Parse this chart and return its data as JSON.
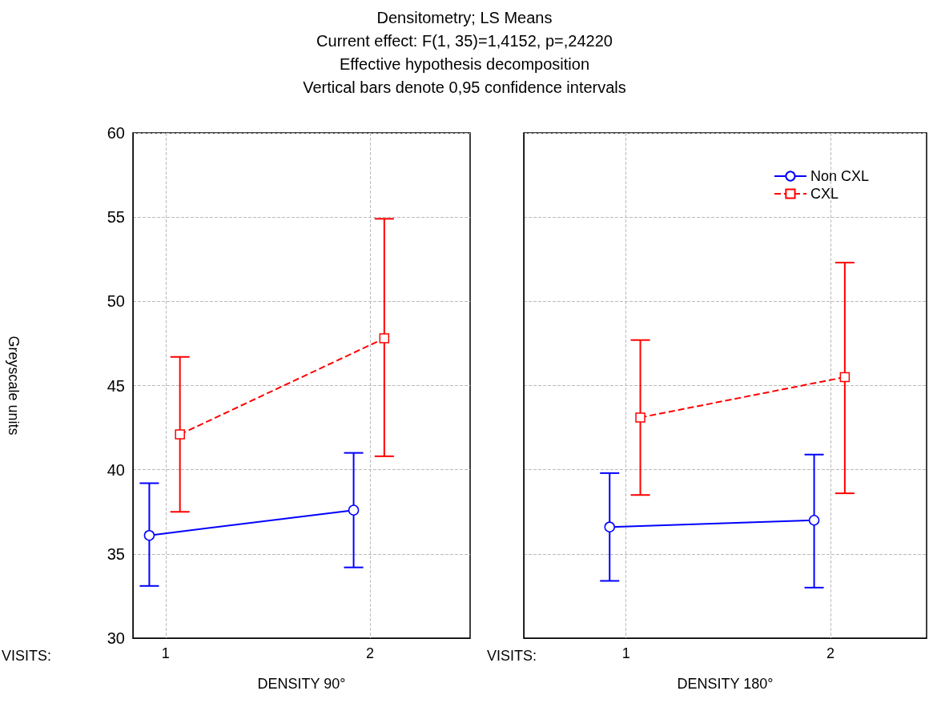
{
  "chart_data": [
    {
      "type": "line",
      "title": "Densitometry; LS Means",
      "subtitle": "Current effect: F(1, 35)=1,4152, p=,24220\nEffective hypothesis decomposition\nVertical bars denote 0,95 confidence intervals",
      "xlabel": "DENSITY 90°",
      "ylabel": "Greyscale units",
      "annotations": [
        "VISITS:"
      ],
      "categories": [
        "1",
        "2"
      ],
      "ylim": [
        30,
        60
      ],
      "yticks": [
        30,
        35,
        40,
        45,
        50,
        55,
        60
      ],
      "grid": true,
      "legend": false,
      "series": [
        {
          "color": "#0000ff",
          "marker": "circle",
          "line_style": "solid",
          "values": [
            36.1,
            37.6
          ],
          "errors": [
            [
              33.1,
              39.2
            ],
            [
              34.2,
              41.0
            ]
          ]
        },
        {
          "color": "#ff0000",
          "marker": "square",
          "line_style": "dashed",
          "values": [
            42.1,
            47.8
          ],
          "errors": [
            [
              37.5,
              46.7
            ],
            [
              40.8,
              54.9
            ]
          ]
        }
      ]
    },
    {
      "type": "line",
      "xlabel": "DENSITY 180°",
      "annotations": [
        "VISITS:"
      ],
      "categories": [
        "1",
        "2"
      ],
      "ylim": [
        30,
        60
      ],
      "yticks": [
        30,
        35,
        40,
        45,
        50,
        55,
        60
      ],
      "grid": true,
      "legend": "top right",
      "tick_labels": "x",
      "series": [
        {
          "name": "Non CXL",
          "color": "#0000ff",
          "marker": "circle",
          "line_style": "solid",
          "values": [
            36.6,
            37.0
          ],
          "errors": [
            [
              33.4,
              39.8
            ],
            [
              33.0,
              40.9
            ]
          ]
        },
        {
          "name": "CXL",
          "color": "#ff0000",
          "marker": "square",
          "line_style": "dashed",
          "values": [
            43.1,
            45.5
          ],
          "errors": [
            [
              38.5,
              47.7
            ],
            [
              38.6,
              52.3
            ]
          ]
        }
      ]
    }
  ]
}
